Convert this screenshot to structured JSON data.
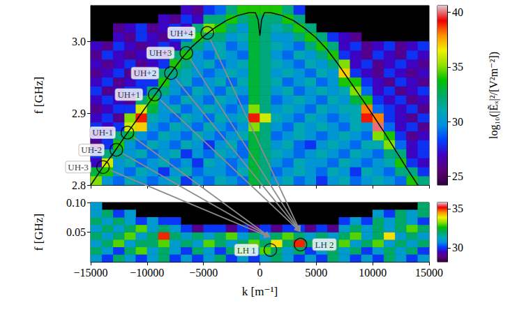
{
  "chart_data": [
    {
      "type": "heatmap",
      "ylabel": "f [GHz]",
      "xlim": [
        -15000,
        15000
      ],
      "xticks": [
        -15000,
        -10000,
        -5000,
        0,
        5000,
        10000,
        15000
      ],
      "ylim": [
        2.8,
        3.05
      ],
      "yticks": [
        2.8,
        2.9,
        {
          "value": 3,
          "label": "3.0"
        }
      ],
      "tick_labels": "y",
      "grid": false,
      "x": [
        -14500,
        -13500,
        -12500,
        -11500,
        -10500,
        -9500,
        -8500,
        -7500,
        -6500,
        -5500,
        -4500,
        -3500,
        -2500,
        -1500,
        -500,
        500,
        1500,
        2500,
        3500,
        4500,
        5500,
        6500,
        7500,
        8500,
        9500,
        10500,
        11500,
        12500,
        13500,
        14500
      ],
      "y": [
        2.80625,
        2.81875,
        2.83125,
        2.84375,
        2.85625,
        2.86875,
        2.88125,
        2.89375,
        2.90625,
        2.91875,
        2.93125,
        2.94375,
        2.95625,
        2.96875,
        2.98125,
        2.99375,
        3.00625,
        3.01875,
        3.03125,
        3.04375
      ],
      "cells": [
        [
          35,
          30,
          29,
          31,
          30,
          29,
          30,
          31,
          28,
          30,
          29,
          31,
          30,
          29,
          33,
          32,
          30,
          31,
          29,
          30,
          28,
          30,
          31,
          29,
          30,
          31,
          30,
          29,
          34,
          32
        ],
        [
          33,
          34,
          30,
          29,
          31,
          30,
          28,
          30,
          31,
          29,
          30,
          30,
          29,
          31,
          33,
          32,
          29,
          30,
          31,
          30,
          29,
          31,
          30,
          28,
          31,
          30,
          29,
          32,
          32,
          28
        ],
        [
          27,
          36,
          30,
          31,
          29,
          30,
          31,
          29,
          30,
          28,
          31,
          30,
          29,
          30,
          33,
          32,
          30,
          29,
          31,
          30,
          30,
          29,
          31,
          30,
          29,
          30,
          31,
          34,
          28,
          27
        ],
        [
          28,
          32,
          32,
          30,
          31,
          29,
          30,
          31,
          28,
          30,
          29,
          31,
          30,
          29,
          33,
          32,
          31,
          30,
          29,
          30,
          31,
          30,
          29,
          31,
          30,
          29,
          32,
          32,
          27,
          28
        ],
        [
          26,
          28,
          34,
          30,
          29,
          31,
          30,
          29,
          31,
          30,
          28,
          30,
          31,
          29,
          33,
          32,
          30,
          31,
          29,
          28,
          30,
          31,
          30,
          29,
          31,
          31,
          35,
          29,
          27,
          28
        ],
        [
          27,
          28,
          32,
          33,
          30,
          29,
          31,
          30,
          29,
          31,
          30,
          29,
          30,
          31,
          33,
          32,
          29,
          30,
          31,
          30,
          29,
          30,
          31,
          30,
          29,
          35,
          34,
          28,
          26,
          27
        ],
        [
          28,
          27,
          28,
          36,
          37,
          30,
          29,
          31,
          30,
          29,
          31,
          30,
          29,
          30,
          35,
          32,
          30,
          29,
          31,
          30,
          31,
          30,
          29,
          31,
          30,
          40,
          29,
          27,
          28,
          26
        ],
        [
          27,
          28,
          26,
          35,
          39,
          31,
          30,
          29,
          31,
          30,
          29,
          31,
          30,
          31,
          39,
          36,
          31,
          30,
          29,
          31,
          30,
          29,
          30,
          31,
          39,
          38,
          28,
          27,
          26,
          28
        ],
        [
          26,
          27,
          28,
          28,
          36,
          33,
          30,
          31,
          29,
          30,
          31,
          30,
          29,
          30,
          35,
          32,
          30,
          31,
          30,
          29,
          31,
          30,
          31,
          31,
          38,
          29,
          28,
          27,
          28,
          26
        ],
        [
          27,
          28,
          27,
          26,
          32,
          34,
          30,
          29,
          31,
          30,
          29,
          31,
          30,
          29,
          33,
          32,
          29,
          30,
          31,
          30,
          29,
          31,
          30,
          33,
          34,
          28,
          27,
          28,
          26,
          27
        ],
        [
          28,
          26,
          27,
          28,
          28,
          32,
          32,
          30,
          29,
          31,
          30,
          29,
          31,
          30,
          33,
          32,
          30,
          31,
          29,
          30,
          31,
          30,
          31,
          35,
          29,
          27,
          28,
          26,
          27,
          28
        ],
        [
          27,
          28,
          26,
          27,
          28,
          28,
          34,
          30,
          31,
          29,
          30,
          31,
          29,
          31,
          33,
          32,
          31,
          29,
          30,
          31,
          29,
          30,
          34,
          34,
          28,
          27,
          26,
          28,
          27,
          26
        ],
        [
          26,
          27,
          28,
          26,
          27,
          29,
          32,
          32,
          31,
          30,
          29,
          30,
          31,
          30,
          33,
          32,
          30,
          31,
          30,
          29,
          31,
          30,
          37,
          28,
          27,
          26,
          28,
          27,
          26,
          27
        ],
        [
          27,
          26,
          27,
          28,
          26,
          27,
          28,
          34,
          32,
          30,
          31,
          29,
          30,
          31,
          33,
          32,
          31,
          30,
          29,
          31,
          30,
          32,
          35,
          27,
          28,
          26,
          27,
          28,
          27,
          26
        ],
        [
          26,
          28,
          27,
          26,
          27,
          28,
          27,
          32,
          34,
          30,
          29,
          31,
          30,
          29,
          33,
          32,
          30,
          29,
          31,
          30,
          32,
          34,
          28,
          27,
          26,
          28,
          27,
          26,
          28,
          27
        ],
        [
          27,
          26,
          28,
          27,
          26,
          27,
          28,
          27,
          32,
          32,
          30,
          31,
          29,
          30,
          33,
          32,
          31,
          30,
          29,
          32,
          34,
          32,
          27,
          28,
          26,
          27,
          28,
          26,
          27,
          28
        ],
        [
          null,
          null,
          27,
          26,
          28,
          27,
          26,
          28,
          29,
          34,
          32,
          32,
          30,
          31,
          33,
          32,
          30,
          30,
          32,
          34,
          32,
          28,
          27,
          26,
          null,
          null,
          null,
          null,
          null,
          null
        ],
        [
          null,
          null,
          26,
          27,
          28,
          26,
          27,
          28,
          27,
          32,
          35,
          34,
          32,
          30,
          33,
          32,
          31,
          32,
          34,
          32,
          null,
          null,
          null,
          null,
          null,
          null,
          null,
          null,
          null,
          null
        ],
        [
          null,
          null,
          null,
          null,
          null,
          null,
          27,
          26,
          28,
          27,
          32,
          32,
          34,
          32,
          33,
          32,
          32,
          34,
          32,
          null,
          null,
          null,
          null,
          null,
          null,
          null,
          null,
          null,
          null,
          null
        ],
        [
          null,
          null,
          null,
          null,
          null,
          null,
          null,
          null,
          27,
          26,
          28,
          29,
          32,
          34,
          34,
          34,
          34,
          32,
          28,
          null,
          null,
          null,
          null,
          null,
          null,
          null,
          null,
          null,
          null,
          null
        ]
      ],
      "colorbar": {
        "range": [
          24.2,
          40.6
        ],
        "ticks": [
          25,
          30,
          35,
          40
        ],
        "label": "log₁₀(|Ẽₓ|²/[V²m⁻²])"
      },
      "curve": {
        "color": "#000000",
        "x": [
          -15000,
          -14000,
          -13000,
          -12000,
          -11000,
          -10000,
          -9000,
          -8000,
          -7000,
          -6000,
          -5000,
          -4000,
          -3000,
          -2000,
          -1000,
          -400,
          -150,
          -50,
          0,
          50,
          150,
          400,
          1000,
          2000,
          3000,
          4000,
          5000,
          6000,
          7000,
          8000,
          9000,
          10000,
          11000,
          12000,
          13000,
          14000,
          15000
        ],
        "values": [
          2.8,
          2.823,
          2.844,
          2.867,
          2.889,
          2.911,
          2.932,
          2.954,
          2.975,
          2.993,
          3.007,
          3.019,
          3.029,
          3.036,
          3.04,
          3.04,
          3.03,
          3.015,
          3.008,
          3.015,
          3.03,
          3.04,
          3.04,
          3.036,
          3.029,
          3.018,
          3.005,
          2.988,
          2.967,
          2.944,
          2.921,
          2.898,
          2.874,
          2.849,
          2.824,
          2.8,
          2.776
        ]
      },
      "markers": [
        {
          "label": "UH+4",
          "x": -4660,
          "y": 3.012
        },
        {
          "label": "UH+3",
          "x": -6520,
          "y": 2.984
        },
        {
          "label": "UH+2",
          "x": -7890,
          "y": 2.956
        },
        {
          "label": "UH+1",
          "x": -9320,
          "y": 2.926
        },
        {
          "label": "UH-1",
          "x": -11740,
          "y": 2.873
        },
        {
          "label": "UH-2",
          "x": -12730,
          "y": 2.849
        },
        {
          "label": "UH-3",
          "x": -13910,
          "y": 2.825
        }
      ],
      "arrows": [
        {
          "from": "UH-3",
          "to": "LH 1"
        },
        {
          "from": "UH-2",
          "to": "LH 1"
        },
        {
          "from": "UH-1",
          "to": "LH 1"
        },
        {
          "from": "UH+1",
          "to": "LH 2"
        },
        {
          "from": "UH+2",
          "to": "LH 2"
        },
        {
          "from": "UH+3",
          "to": "LH 2"
        },
        {
          "from": "UH+4",
          "to": "LH 2"
        }
      ]
    },
    {
      "type": "heatmap",
      "xlabel": "k [m⁻¹]",
      "ylabel": "f [GHz]",
      "xlim": [
        -15000,
        15000
      ],
      "xticks": [
        {
          "value": -15000,
          "label": "−15000"
        },
        {
          "value": -10000,
          "label": "−10000"
        },
        {
          "value": -5000,
          "label": "−5000"
        },
        0,
        5000,
        10000,
        15000
      ],
      "ylim": [
        0,
        0.1
      ],
      "yticks": [
        0.05,
        {
          "value": 0.1,
          "label": "0.10"
        }
      ],
      "grid": false,
      "x": [
        -14500,
        -13500,
        -12500,
        -11500,
        -10500,
        -9500,
        -8500,
        -7500,
        -6500,
        -5500,
        -4500,
        -3500,
        -2500,
        -1500,
        -500,
        500,
        1500,
        2500,
        3500,
        4500,
        5500,
        6500,
        7500,
        8500,
        9500,
        10500,
        11500,
        12500,
        13500,
        14500
      ],
      "y": [
        0.00625,
        0.01875,
        0.03125,
        0.04375,
        0.05625,
        0.06875,
        0.08125,
        0.09375
      ],
      "cells": [
        [
          31,
          30,
          32,
          31,
          30,
          31,
          32,
          30,
          31,
          30,
          31,
          32,
          30,
          31,
          30,
          31,
          32,
          31,
          30,
          31,
          30,
          32,
          31,
          30,
          31,
          30,
          32,
          31,
          30,
          31
        ],
        [
          32,
          31,
          30,
          32,
          33,
          31,
          32,
          31,
          30,
          32,
          31,
          30,
          32,
          33,
          31,
          33,
          32,
          31,
          32,
          30,
          31,
          32,
          31,
          32,
          30,
          31,
          32,
          31,
          32,
          30
        ],
        [
          31,
          32,
          33,
          31,
          32,
          32,
          33,
          31,
          32,
          31,
          33,
          32,
          31,
          32,
          33,
          32,
          34,
          32,
          35,
          32,
          31,
          32,
          33,
          31,
          32,
          33,
          31,
          32,
          31,
          32
        ],
        [
          32,
          31,
          32,
          33,
          31,
          32,
          35,
          32,
          31,
          32,
          31,
          32,
          33,
          31,
          32,
          31,
          32,
          33,
          32,
          31,
          32,
          31,
          32,
          33,
          31,
          32,
          34,
          31,
          32,
          31
        ],
        [
          31,
          32,
          31,
          32,
          33,
          31,
          32,
          31,
          30,
          29,
          30,
          30,
          29,
          30,
          29,
          30,
          29,
          30,
          30,
          29,
          30,
          29,
          31,
          32,
          31,
          32,
          31,
          32,
          33,
          32
        ],
        [
          32,
          31,
          32,
          31,
          30,
          31,
          30,
          30,
          null,
          null,
          null,
          null,
          null,
          null,
          null,
          null,
          null,
          null,
          null,
          null,
          null,
          null,
          30,
          31,
          30,
          32,
          31,
          32,
          31,
          30
        ],
        [
          31,
          32,
          30,
          31,
          null,
          null,
          null,
          null,
          null,
          null,
          null,
          null,
          null,
          null,
          null,
          null,
          null,
          null,
          null,
          null,
          null,
          null,
          null,
          null,
          null,
          31,
          30,
          32,
          31,
          32
        ],
        [
          31,
          null,
          null,
          null,
          null,
          null,
          null,
          null,
          null,
          null,
          null,
          null,
          null,
          null,
          null,
          null,
          null,
          null,
          null,
          null,
          null,
          null,
          null,
          null,
          null,
          null,
          null,
          null,
          null,
          32
        ]
      ],
      "colorbar": {
        "range": [
          28.2,
          35.8
        ],
        "ticks": [
          30,
          35
        ]
      },
      "markers": [
        {
          "label": "LH 1",
          "x": 930,
          "y": 0.02
        },
        {
          "label": "LH 2",
          "x": 3600,
          "y": 0.029
        }
      ]
    }
  ]
}
